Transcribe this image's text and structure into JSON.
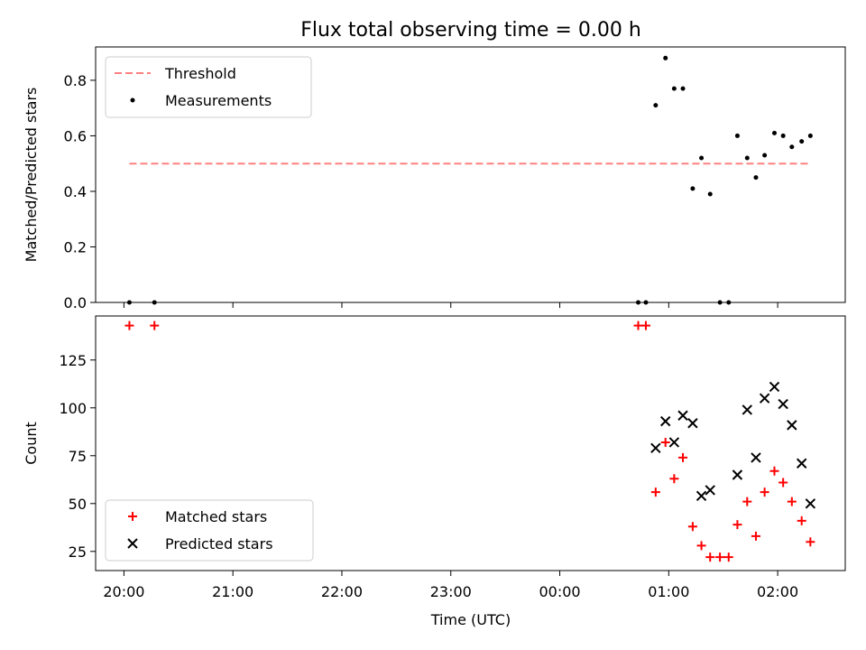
{
  "chart_data": {
    "title": "Flux total observing time = 0.00 h",
    "x_axis": {
      "label": "Time (UTC)",
      "unit": "hours since 20:00 UTC",
      "range": [
        -0.26,
        6.62
      ],
      "ticks": [
        {
          "value": 0,
          "label": "20:00"
        },
        {
          "value": 1,
          "label": "21:00"
        },
        {
          "value": 2,
          "label": "22:00"
        },
        {
          "value": 3,
          "label": "23:00"
        },
        {
          "value": 4,
          "label": "00:00"
        },
        {
          "value": 5,
          "label": "01:00"
        },
        {
          "value": 6,
          "label": "02:00"
        }
      ]
    },
    "charts": [
      {
        "type": "scatter",
        "ylabel": "Matched/Predicted stars",
        "ylim": [
          0,
          0.92
        ],
        "yticks": [
          {
            "value": 0,
            "label": "0.0"
          },
          {
            "value": 0.2,
            "label": "0.2"
          },
          {
            "value": 0.4,
            "label": "0.4"
          },
          {
            "value": 0.6,
            "label": "0.6"
          },
          {
            "value": 0.8,
            "label": "0.8"
          }
        ],
        "legend_position": "upper-left",
        "series": [
          {
            "name": "Threshold",
            "kind": "dashed-line",
            "color": "#ff8080",
            "points": [
              [
                0.05,
                0.5
              ],
              [
                6.3,
                0.5
              ]
            ]
          },
          {
            "name": "Measurements",
            "kind": "dot",
            "color": "#000000",
            "points": [
              [
                0.05,
                0.0
              ],
              [
                0.28,
                0.0
              ],
              [
                4.72,
                0.0
              ],
              [
                4.79,
                0.0
              ],
              [
                4.88,
                0.71
              ],
              [
                4.97,
                0.88
              ],
              [
                5.05,
                0.77
              ],
              [
                5.13,
                0.77
              ],
              [
                5.22,
                0.41
              ],
              [
                5.3,
                0.52
              ],
              [
                5.38,
                0.39
              ],
              [
                5.47,
                0.0
              ],
              [
                5.55,
                0.0
              ],
              [
                5.63,
                0.6
              ],
              [
                5.72,
                0.52
              ],
              [
                5.8,
                0.45
              ],
              [
                5.88,
                0.53
              ],
              [
                5.97,
                0.61
              ],
              [
                6.05,
                0.6
              ],
              [
                6.13,
                0.56
              ],
              [
                6.22,
                0.58
              ],
              [
                6.3,
                0.6
              ]
            ]
          }
        ]
      },
      {
        "type": "scatter",
        "ylabel": "Count",
        "ylim": [
          15,
          148
        ],
        "yticks": [
          {
            "value": 25,
            "label": "25"
          },
          {
            "value": 50,
            "label": "50"
          },
          {
            "value": 75,
            "label": "75"
          },
          {
            "value": 100,
            "label": "100"
          },
          {
            "value": 125,
            "label": "125"
          }
        ],
        "legend_position": "lower-left",
        "series": [
          {
            "name": "Matched stars",
            "kind": "plus",
            "color": "#ff0000",
            "points": [
              [
                0.05,
                143
              ],
              [
                0.28,
                143
              ],
              [
                4.72,
                143
              ],
              [
                4.79,
                143
              ],
              [
                4.88,
                56
              ],
              [
                4.97,
                82
              ],
              [
                5.05,
                63
              ],
              [
                5.13,
                74
              ],
              [
                5.22,
                38
              ],
              [
                5.3,
                28
              ],
              [
                5.38,
                22
              ],
              [
                5.47,
                22
              ],
              [
                5.55,
                22
              ],
              [
                5.63,
                39
              ],
              [
                5.72,
                51
              ],
              [
                5.8,
                33
              ],
              [
                5.88,
                56
              ],
              [
                5.97,
                67
              ],
              [
                6.05,
                61
              ],
              [
                6.13,
                51
              ],
              [
                6.22,
                41
              ],
              [
                6.3,
                30
              ]
            ]
          },
          {
            "name": "Predicted stars",
            "kind": "x",
            "color": "#000000",
            "points": [
              [
                4.88,
                79
              ],
              [
                4.97,
                93
              ],
              [
                5.05,
                82
              ],
              [
                5.13,
                96
              ],
              [
                5.22,
                92
              ],
              [
                5.3,
                54
              ],
              [
                5.38,
                57
              ],
              [
                5.63,
                65
              ],
              [
                5.72,
                99
              ],
              [
                5.8,
                74
              ],
              [
                5.88,
                105
              ],
              [
                5.97,
                111
              ],
              [
                6.05,
                102
              ],
              [
                6.13,
                91
              ],
              [
                6.22,
                71
              ],
              [
                6.3,
                50
              ]
            ]
          }
        ]
      }
    ]
  }
}
